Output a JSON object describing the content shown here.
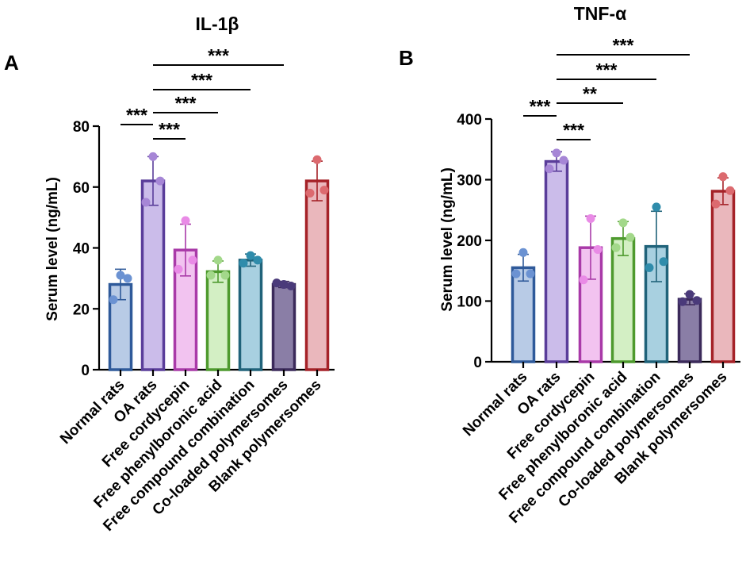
{
  "chart_data": [
    {
      "type": "bar",
      "panel_letter": "A",
      "title": "IL-1β",
      "ylabel": "Serum level (ng/mL)",
      "xlabel": "",
      "ylim": [
        0,
        80
      ],
      "yticks": [
        0,
        20,
        40,
        60,
        80
      ],
      "categories": [
        "Normal rats",
        "OA rats",
        "Free cordycepin",
        "Free phenylboronic acid",
        "Free compound combination",
        "Co-loaded polymersomes",
        "Blank polymersomes"
      ],
      "values": [
        28,
        62,
        39.3,
        32.2,
        36,
        28,
        62
      ],
      "sd": [
        5,
        8,
        8.5,
        3.5,
        2,
        1,
        6.5
      ],
      "points": [
        [
          31,
          23,
          30
        ],
        [
          70,
          55,
          62
        ],
        [
          49,
          33,
          36
        ],
        [
          36,
          31,
          31
        ],
        [
          37.5,
          35,
          36
        ],
        [
          28,
          28.5,
          27.5
        ],
        [
          69,
          58,
          59
        ]
      ],
      "significance": [
        {
          "from": 0,
          "to": 1,
          "label": "***"
        },
        {
          "from": 1,
          "to": 2,
          "label": "***"
        },
        {
          "from": 1,
          "to": 3,
          "label": "***"
        },
        {
          "from": 1,
          "to": 4,
          "label": "***"
        },
        {
          "from": 1,
          "to": 5,
          "label": "***"
        }
      ]
    },
    {
      "type": "bar",
      "panel_letter": "B",
      "title": "TNF-α",
      "ylabel": "Serum level (ng/mL)",
      "xlabel": "",
      "ylim": [
        0,
        400
      ],
      "yticks": [
        0,
        100,
        200,
        300,
        400
      ],
      "categories": [
        "Normal rats",
        "OA rats",
        "Free cordycepin",
        "Free phenylboronic acid",
        "Free compound combination",
        "Co-loaded polymersomes",
        "Blank polymersomes"
      ],
      "values": [
        155,
        330,
        188,
        203,
        190,
        103,
        281
      ],
      "sd": [
        22,
        16,
        52,
        28,
        58,
        9,
        22
      ],
      "points": [
        [
          180,
          145,
          145
        ],
        [
          344,
          318,
          332
        ],
        [
          236,
          135,
          185
        ],
        [
          229,
          188,
          205
        ],
        [
          255,
          155,
          165
        ],
        [
          111,
          99,
          101
        ],
        [
          305,
          260,
          282
        ]
      ],
      "significance": [
        {
          "from": 0,
          "to": 1,
          "label": "***"
        },
        {
          "from": 1,
          "to": 2,
          "label": "***"
        },
        {
          "from": 1,
          "to": 3,
          "label": "**"
        },
        {
          "from": 1,
          "to": 4,
          "label": "***"
        },
        {
          "from": 1,
          "to": 5,
          "label": "***"
        }
      ]
    }
  ],
  "colors": {
    "edges": [
      "#2f5a9a",
      "#5a3d9a",
      "#a93aa8",
      "#4e9a2e",
      "#20637a",
      "#3b2a5a",
      "#a52228"
    ],
    "fills": [
      "#b8cbe6",
      "#cbbcea",
      "#f2c3f0",
      "#d3efc4",
      "#a8d0e0",
      "#8a7ea6",
      "#eab7bc"
    ],
    "dots": [
      "#6b92d2",
      "#a686d6",
      "#e98be6",
      "#a3d88a",
      "#2f8cab",
      "#4a3a7a",
      "#dc6a6f"
    ]
  }
}
